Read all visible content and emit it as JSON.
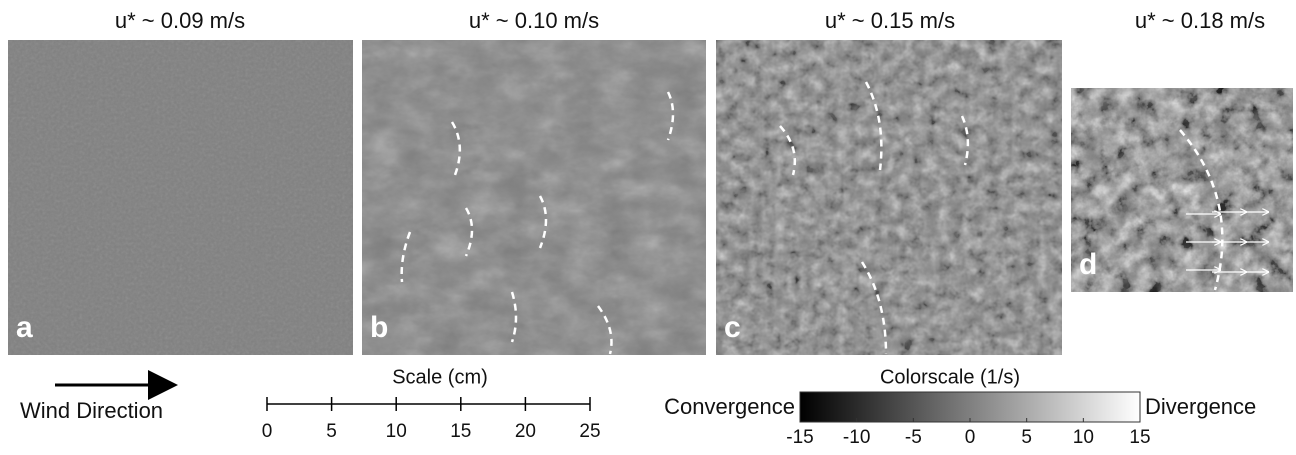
{
  "panels": [
    {
      "title": "u* ~ 0.09 m/s",
      "label": "a"
    },
    {
      "title": "u* ~ 0.10 m/s",
      "label": "b"
    },
    {
      "title": "u* ~ 0.15 m/s",
      "label": "c"
    },
    {
      "title": "u* ~ 0.18 m/s",
      "label": "d"
    }
  ],
  "wind_direction": "Wind Direction",
  "scale": {
    "title": "Scale (cm)",
    "ticks": [
      0,
      5,
      10,
      15,
      20,
      25
    ]
  },
  "colorscale": {
    "title": "Colorscale (1/s)",
    "low_label": "Convergence",
    "high_label": "Divergence",
    "ticks": [
      -15,
      -10,
      -5,
      0,
      5,
      10,
      15
    ]
  }
}
